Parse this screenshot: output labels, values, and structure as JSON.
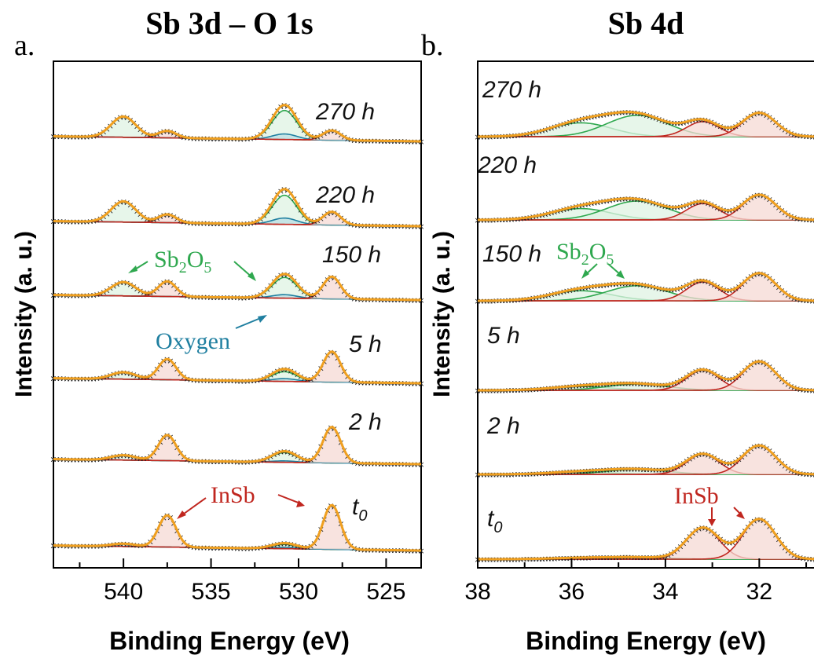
{
  "colors": {
    "sb2o5": "#2fa84f",
    "sb2o5_fill": "#dff3e3",
    "insb": "#c0261f",
    "insb_fill": "#f6d9d4",
    "oxygen": "#1f7fa0",
    "oxygen_fill": "#b9dde3",
    "envelope": "#f0a020",
    "background_line": "#8a8a8a",
    "data_marker": "#222222"
  },
  "y_axis_label": "Intensity (a. u.)",
  "chart_data": [
    {
      "panel_letter": "a.",
      "title": "Sb 3d – O 1s",
      "type": "line",
      "xlabel": "Binding Energy (eV)",
      "ylabel": "Intensity (a. u.)",
      "xlim": [
        544,
        523
      ],
      "xticks": [
        540,
        535,
        530,
        525
      ],
      "xtick_labels": [
        "540",
        "535",
        "530",
        "525"
      ],
      "grid": false,
      "spectrum_labels": [
        "270 h",
        "220 h",
        "150 h",
        "5 h",
        "2 h",
        "t0"
      ],
      "baseline_slope": 0.0035,
      "components": [
        {
          "name": "Sb2O5 3d3/2",
          "family": "sb2o5",
          "center": 540.0,
          "width": 0.7
        },
        {
          "name": "InSb 3d3/2",
          "family": "insb",
          "center": 537.5,
          "width": 0.5
        },
        {
          "name": "Sb2O5 3d5/2",
          "family": "sb2o5",
          "center": 530.8,
          "width": 0.7
        },
        {
          "name": "Oxygen",
          "family": "oxygen",
          "center": 530.8,
          "width": 0.7
        },
        {
          "name": "InSb 3d5/2",
          "family": "insb",
          "center": 528.1,
          "width": 0.5
        }
      ],
      "amplitudes": [
        [
          0.3,
          0.1,
          0.42,
          0.08,
          0.14
        ],
        [
          0.3,
          0.12,
          0.42,
          0.09,
          0.19
        ],
        [
          0.2,
          0.22,
          0.3,
          0.05,
          0.32
        ],
        [
          0.1,
          0.3,
          0.14,
          0.04,
          0.44
        ],
        [
          0.07,
          0.37,
          0.14,
          0.02,
          0.52
        ],
        [
          0.04,
          0.46,
          0.06,
          0.02,
          0.64
        ]
      ],
      "annotations": [
        {
          "text": "Sb₂O₅",
          "family": "sb2o5"
        },
        {
          "text": "Oxygen",
          "family": "oxygen"
        },
        {
          "text": "InSb",
          "family": "insb"
        }
      ]
    },
    {
      "panel_letter": "b.",
      "title": "Sb 4d",
      "type": "line",
      "xlabel": "Binding Energy (eV)",
      "ylabel": "Intensity (a. u.)",
      "xlim": [
        38,
        30.8
      ],
      "xticks": [
        38,
        36,
        34,
        32
      ],
      "xtick_labels": [
        "38",
        "36",
        "34",
        "32"
      ],
      "grid": false,
      "spectrum_labels": [
        "270 h",
        "220 h",
        "150 h",
        "5 h",
        "2 h",
        "t0"
      ],
      "baseline_slope": 0,
      "components": [
        {
          "name": "Sb2O5 4d3/2",
          "family": "sb2o5",
          "center": 35.8,
          "width": 0.65
        },
        {
          "name": "Sb2O5 4d5/2",
          "family": "sb2o5",
          "center": 34.6,
          "width": 0.65
        },
        {
          "name": "InSb 4d3/2",
          "family": "insb",
          "center": 33.2,
          "width": 0.35
        },
        {
          "name": "InSb 4d5/2",
          "family": "insb",
          "center": 32.0,
          "width": 0.35
        }
      ],
      "amplitudes": [
        [
          0.22,
          0.34,
          0.24,
          0.38
        ],
        [
          0.18,
          0.3,
          0.26,
          0.4
        ],
        [
          0.16,
          0.24,
          0.3,
          0.44
        ],
        [
          0.06,
          0.1,
          0.32,
          0.46
        ],
        [
          0.04,
          0.08,
          0.32,
          0.46
        ],
        [
          0.02,
          0.03,
          0.5,
          0.64
        ]
      ],
      "annotations": [
        {
          "text": "Sb₂O₅",
          "family": "sb2o5"
        },
        {
          "text": "InSb",
          "family": "insb"
        }
      ]
    }
  ]
}
